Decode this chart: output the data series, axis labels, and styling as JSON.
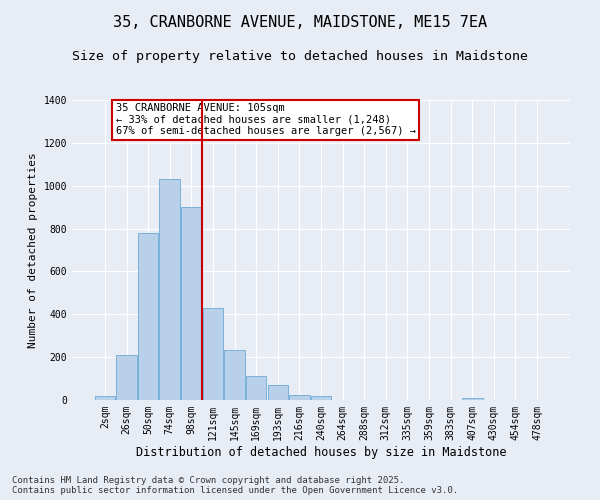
{
  "title": "35, CRANBORNE AVENUE, MAIDSTONE, ME15 7EA",
  "subtitle": "Size of property relative to detached houses in Maidstone",
  "xlabel": "Distribution of detached houses by size in Maidstone",
  "ylabel": "Number of detached properties",
  "categories": [
    "2sqm",
    "26sqm",
    "50sqm",
    "74sqm",
    "98sqm",
    "121sqm",
    "145sqm",
    "169sqm",
    "193sqm",
    "216sqm",
    "240sqm",
    "264sqm",
    "288sqm",
    "312sqm",
    "335sqm",
    "359sqm",
    "383sqm",
    "407sqm",
    "430sqm",
    "454sqm",
    "478sqm"
  ],
  "values": [
    20,
    210,
    780,
    1030,
    900,
    430,
    235,
    110,
    70,
    25,
    20,
    0,
    0,
    0,
    0,
    0,
    0,
    10,
    0,
    0,
    0
  ],
  "bar_color": "#b8d0ea",
  "bar_edge_color": "#6aaad4",
  "vline_x_idx": 4.5,
  "vline_color": "#cc0000",
  "annotation_text": "35 CRANBORNE AVENUE: 105sqm\n← 33% of detached houses are smaller (1,248)\n67% of semi-detached houses are larger (2,567) →",
  "annotation_box_facecolor": "#ffffff",
  "annotation_box_edgecolor": "#cc0000",
  "ylim": [
    0,
    1400
  ],
  "yticks": [
    0,
    200,
    400,
    600,
    800,
    1000,
    1200,
    1400
  ],
  "bg_color": "#e8edf5",
  "plot_bg_color": "#e8edf5",
  "footer": "Contains HM Land Registry data © Crown copyright and database right 2025.\nContains public sector information licensed under the Open Government Licence v3.0.",
  "title_fontsize": 11,
  "subtitle_fontsize": 9.5,
  "xlabel_fontsize": 8.5,
  "ylabel_fontsize": 8,
  "tick_fontsize": 7,
  "footer_fontsize": 6.5,
  "annotation_fontsize": 7.5
}
